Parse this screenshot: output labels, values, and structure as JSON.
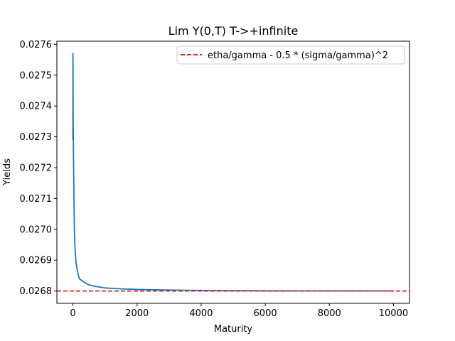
{
  "chart_data": {
    "type": "line",
    "title": "Lim Y(0,T) T->+infinite",
    "xlabel": "Maturity",
    "ylabel": "Yields",
    "xlim": [
      -500,
      10500
    ],
    "ylim": [
      0.02676,
      0.02761
    ],
    "xticks": [
      0,
      2000,
      4000,
      6000,
      8000,
      10000
    ],
    "xtick_labels": [
      "0",
      "2000",
      "4000",
      "6000",
      "8000",
      "10000"
    ],
    "yticks": [
      0.0268,
      0.0269,
      0.027,
      0.0271,
      0.0272,
      0.0273,
      0.0274,
      0.0275,
      0.0276
    ],
    "ytick_labels": [
      "0.0268",
      "0.0269",
      "0.0270",
      "0.0271",
      "0.0272",
      "0.0273",
      "0.0274",
      "0.0275",
      "0.0276"
    ],
    "grid": false,
    "legend_position": "top-right",
    "series": [
      {
        "color": "#1f77b4",
        "style": "solid",
        "x": [
          0,
          1,
          2,
          3,
          5,
          10,
          20,
          35,
          50,
          75,
          100,
          150,
          200,
          300,
          400,
          500,
          700,
          1000,
          1500,
          2000,
          3000,
          4000,
          5000,
          6000,
          7000,
          8000,
          9000,
          10000
        ],
        "y": [
          0.02729,
          0.02757,
          0.02756,
          0.02754,
          0.02745,
          0.02733,
          0.02722,
          0.02708,
          0.02698,
          0.02692,
          0.02689,
          0.02686,
          0.02684,
          0.026832,
          0.026825,
          0.02682,
          0.026815,
          0.02681,
          0.026807,
          0.026805,
          0.026803,
          0.026802,
          0.026801,
          0.0268008,
          0.0268006,
          0.0268005,
          0.0268004,
          0.0268003
        ]
      },
      {
        "name": "etha/gamma - 0.5 * (sigma/gamma)^2",
        "color": "#d62728",
        "style": "dashed",
        "constant_y": 0.0268
      }
    ]
  }
}
